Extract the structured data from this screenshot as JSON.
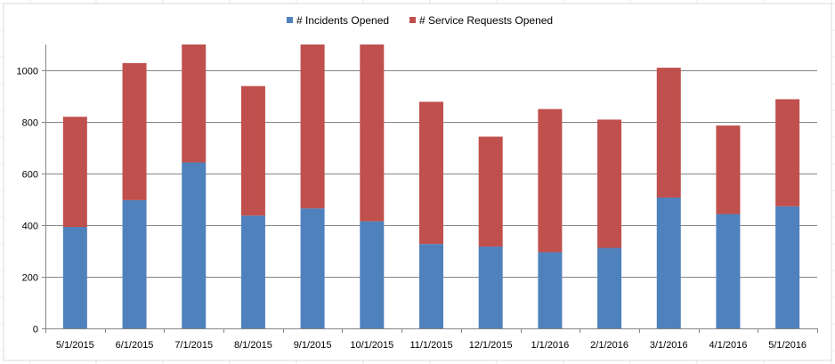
{
  "chart_data": {
    "type": "bar",
    "stacked": true,
    "categories": [
      "5/1/2015",
      "6/1/2015",
      "7/1/2015",
      "8/1/2015",
      "9/1/2015",
      "10/1/2015",
      "11/1/2015",
      "12/1/2015",
      "1/1/2016",
      "2/1/2016",
      "3/1/2016",
      "4/1/2016",
      "5/1/2016"
    ],
    "series": [
      {
        "name": "# Incidents Opened",
        "color": "#4f81bd",
        "values": [
          393,
          497,
          643,
          437,
          465,
          415,
          327,
          317,
          295,
          312,
          507,
          443,
          473
        ]
      },
      {
        "name": "# Service Requests Opened",
        "color": "#c0504d",
        "values": [
          427,
          531,
          457,
          502,
          635,
          685,
          551,
          426,
          555,
          497,
          503,
          343,
          415
        ]
      }
    ],
    "title": "",
    "xlabel": "",
    "ylabel": "",
    "ylim": [
      0,
      1100
    ],
    "yticks": [
      "0",
      "200",
      "400",
      "600",
      "800",
      "1000"
    ],
    "grid": true,
    "legend_position": "top"
  }
}
